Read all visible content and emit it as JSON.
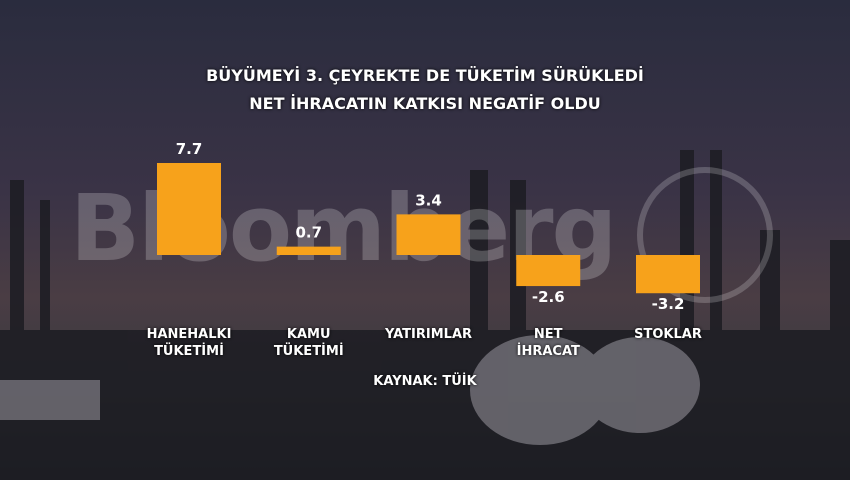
{
  "chart_data": {
    "type": "bar",
    "title": "BÜYÜMEYİ 3. ÇEYREKTE DE TÜKETİM SÜRÜKLEDİ",
    "subtitle": "NET İHRACATIN KATKISI NEGATİF OLDU",
    "categories": [
      "HANEHALKI\nTÜKETİMİ",
      "KAMU\nTÜKETİMİ",
      "YATIRIMLAR",
      "NET\nİHRACAT",
      "STOKLAR"
    ],
    "values": [
      7.7,
      0.7,
      3.4,
      -2.6,
      -3.2
    ],
    "color": "#f7a21b",
    "source": "KAYNAK: TÜİK",
    "watermark": "Bloomberg"
  }
}
